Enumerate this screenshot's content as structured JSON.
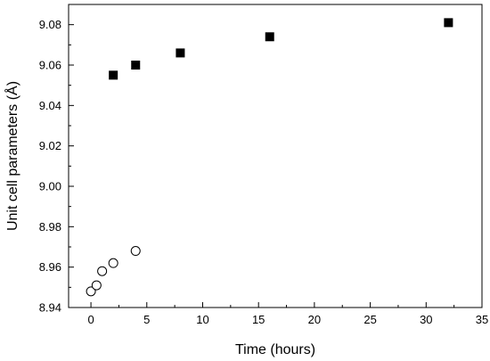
{
  "chart_data": {
    "type": "scatter",
    "title": "",
    "xlabel": "Time (hours)",
    "ylabel": "Unit cell parameters (Å)",
    "xlim": [
      -2,
      35
    ],
    "ylim": [
      8.94,
      9.09
    ],
    "x_ticks": [
      0,
      5,
      10,
      15,
      20,
      25,
      30,
      35
    ],
    "y_ticks": [
      8.94,
      8.96,
      8.98,
      9.0,
      9.02,
      9.04,
      9.06,
      9.08
    ],
    "x_tick_labels": [
      "0",
      "5",
      "10",
      "15",
      "20",
      "25",
      "30",
      "35"
    ],
    "y_tick_labels": [
      "8.94",
      "8.96",
      "8.98",
      "9.00",
      "9.02",
      "9.04",
      "9.06",
      "9.08"
    ],
    "grid": false,
    "legend": "none",
    "series": [
      {
        "marker": "filled-square",
        "color": "#000000",
        "x": [
          2,
          4,
          8,
          16,
          32
        ],
        "y": [
          9.055,
          9.06,
          9.066,
          9.074,
          9.081
        ]
      },
      {
        "marker": "open-circle",
        "color": "#000000",
        "x": [
          0,
          0.5,
          1,
          2,
          4
        ],
        "y": [
          8.948,
          8.951,
          8.958,
          8.962,
          8.968
        ]
      }
    ]
  }
}
